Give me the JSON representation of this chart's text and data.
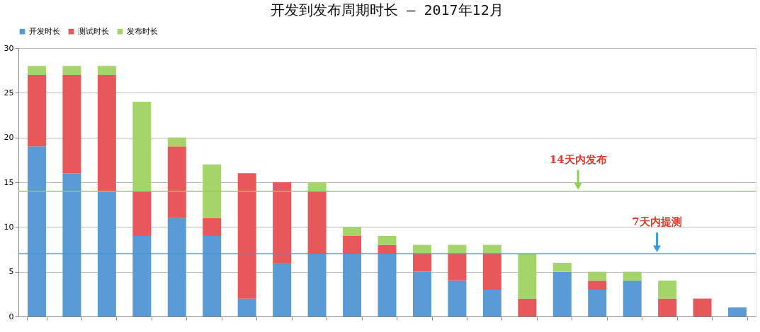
{
  "chart_data": {
    "type": "bar",
    "title": "开发到发布周期时长 – 2017年12月",
    "stacked": true,
    "categories": [
      null,
      null,
      null,
      null,
      null,
      null,
      null,
      null,
      null,
      null,
      null,
      null,
      null,
      null,
      null,
      null,
      null,
      null,
      null,
      null,
      null
    ],
    "series": [
      {
        "name": "开发时长",
        "color": "#5b9bd5",
        "values": [
          19,
          16,
          14,
          9,
          11,
          9,
          2,
          6,
          7,
          7,
          7,
          5,
          4,
          3,
          0,
          5,
          3,
          4,
          0,
          0,
          1
        ]
      },
      {
        "name": "测试时长",
        "color": "#e8585a",
        "values": [
          8,
          11,
          13,
          5,
          8,
          2,
          14,
          9,
          7,
          2,
          1,
          2,
          3,
          4,
          2,
          0,
          1,
          0,
          2,
          2,
          0
        ]
      },
      {
        "name": "发布时长",
        "color": "#a5d46a",
        "values": [
          1,
          1,
          1,
          10,
          1,
          6,
          0,
          0,
          1,
          1,
          1,
          1,
          1,
          1,
          5,
          1,
          1,
          1,
          2,
          0,
          0
        ]
      }
    ],
    "ylim": [
      0,
      30
    ],
    "yticks": [
      0,
      5,
      10,
      15,
      20,
      25,
      30
    ],
    "grid": "y",
    "legend": "top",
    "ref_lines": [
      {
        "axis": "y",
        "value": 14,
        "label": "14天内发布",
        "color": "#8fd14f"
      },
      {
        "axis": "y",
        "value": 7,
        "label": "7天内提测",
        "color": "#3a9ad9"
      }
    ]
  }
}
